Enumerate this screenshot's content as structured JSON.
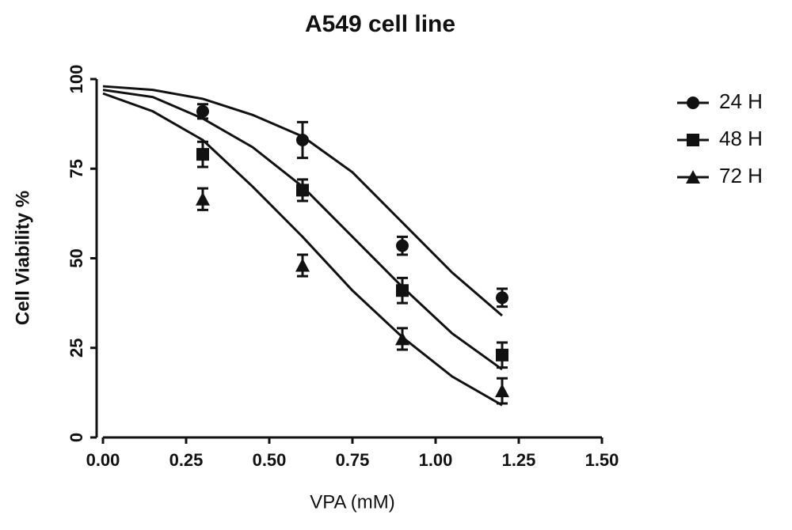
{
  "chart_data": {
    "type": "scatter",
    "title": "A549 cell line",
    "x_label": "VPA (mM)",
    "y_label": "Cell Viability %",
    "xlim": [
      0,
      1.5
    ],
    "ylim": [
      0,
      100
    ],
    "xticks": [
      {
        "value": 0,
        "label": "0.00"
      },
      {
        "value": 0.25,
        "label": "0.25"
      },
      {
        "value": 0.5,
        "label": "0.50"
      },
      {
        "value": 0.75,
        "label": "0.75"
      },
      {
        "value": 1,
        "label": "1.00"
      },
      {
        "value": 1.25,
        "label": "1.25"
      },
      {
        "value": 1.5,
        "label": "1.50"
      }
    ],
    "yticks": [
      0,
      25,
      50,
      75,
      100
    ],
    "x": [
      0.3,
      0.6,
      0.9,
      1.2
    ],
    "fit_x": [
      0,
      0.15,
      0.3,
      0.45,
      0.6,
      0.75,
      0.9,
      1.05,
      1.2
    ],
    "legend": "right",
    "series": [
      {
        "name": "24 H",
        "color": "#111111",
        "marker": "circle",
        "values": [
          91,
          83,
          53.5,
          39
        ],
        "errors": [
          2,
          5,
          2.5,
          2.5
        ],
        "fit": [
          98,
          97,
          94.5,
          90,
          84,
          74,
          60,
          46,
          34
        ]
      },
      {
        "name": "48 H",
        "color": "#111111",
        "marker": "square",
        "values": [
          79,
          69,
          41,
          23
        ],
        "errors": [
          3.5,
          3,
          3.5,
          3.5
        ],
        "fit": [
          97,
          95,
          89,
          81,
          70,
          56,
          42,
          29,
          19
        ]
      },
      {
        "name": "72 H",
        "color": "#111111",
        "marker": "triangle",
        "values": [
          66.5,
          48,
          27.5,
          13
        ],
        "errors": [
          3,
          3,
          3,
          3.5
        ],
        "fit": [
          96,
          91,
          83,
          70,
          56,
          41,
          28,
          17,
          9
        ]
      }
    ]
  }
}
